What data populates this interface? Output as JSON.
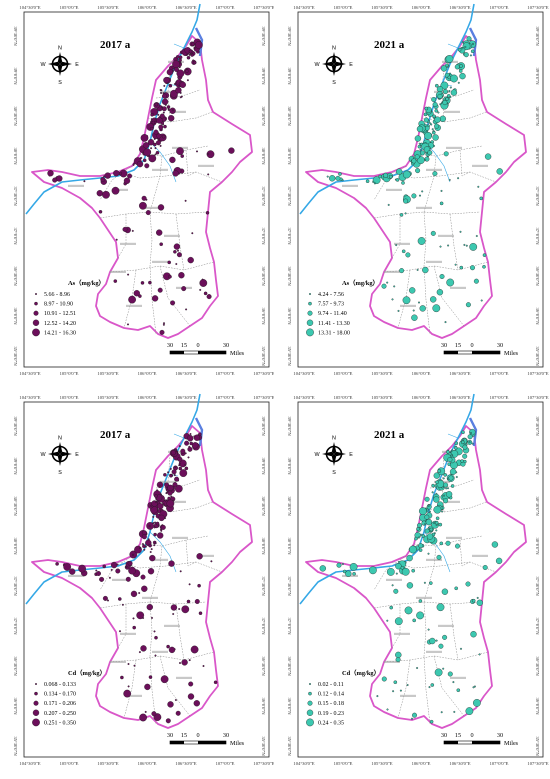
{
  "lon_labels": [
    "104°30'0\"E",
    "105°0'0\"E",
    "105°30'0\"E",
    "106°0'0\"E",
    "106°30'0\"E",
    "107°0'0\"E",
    "107°30'0\"E"
  ],
  "lat_labels": [
    "39°30'0\"N",
    "39°0'0\"N",
    "38°30'0\"N",
    "38°0'0\"N",
    "37°30'0\"N",
    "37°0'0\"N",
    "36°30'0\"N",
    "36°0'0\"N",
    "35°30'0\"N"
  ],
  "north_arrow": {
    "n": "N",
    "s": "S",
    "e": "E",
    "w": "W"
  },
  "scale_bar": {
    "ticks": [
      "30",
      "15",
      "0",
      "30"
    ],
    "unit": "Miles"
  },
  "colors": {
    "purple": "#6b0f5a",
    "teal": "#3cc8b0",
    "boundary": "#d957c9",
    "river": "#35a8e6"
  },
  "panels": [
    {
      "id": "as-2017",
      "year": "2017 a",
      "legend_title": "As（mg/kg）",
      "color": "#6b0f5a",
      "classes": [
        "5.66 - 8.96",
        "8.97 - 10.90",
        "10.91 - 12.51",
        "12.52 - 14.20",
        "14.21 - 16.30"
      ]
    },
    {
      "id": "as-2021",
      "year": "2021 a",
      "legend_title": "As（mg/kg）",
      "color": "#3cc8b0",
      "classes": [
        "4.24 - 7.56",
        "7.57 - 9.73",
        "9.74 - 11.40",
        "11.41 - 13.30",
        "13.31 - 18.00"
      ]
    },
    {
      "id": "cd-2017",
      "year": "2017 a",
      "legend_title": "Cd（mg/kg）",
      "color": "#6b0f5a",
      "classes": [
        "0.068 - 0.133",
        "0.134 - 0.170",
        "0.171 - 0.206",
        "0.207 - 0.250",
        "0.251 - 0.350"
      ]
    },
    {
      "id": "cd-2021",
      "year": "2021 a",
      "legend_title": "Cd（mg/kg）",
      "color": "#3cc8b0",
      "classes": [
        "0.02 - 0.11",
        "0.12 - 0.14",
        "0.15 - 0.18",
        "0.19 - 0.23",
        "0.24 - 0.35"
      ]
    }
  ]
}
